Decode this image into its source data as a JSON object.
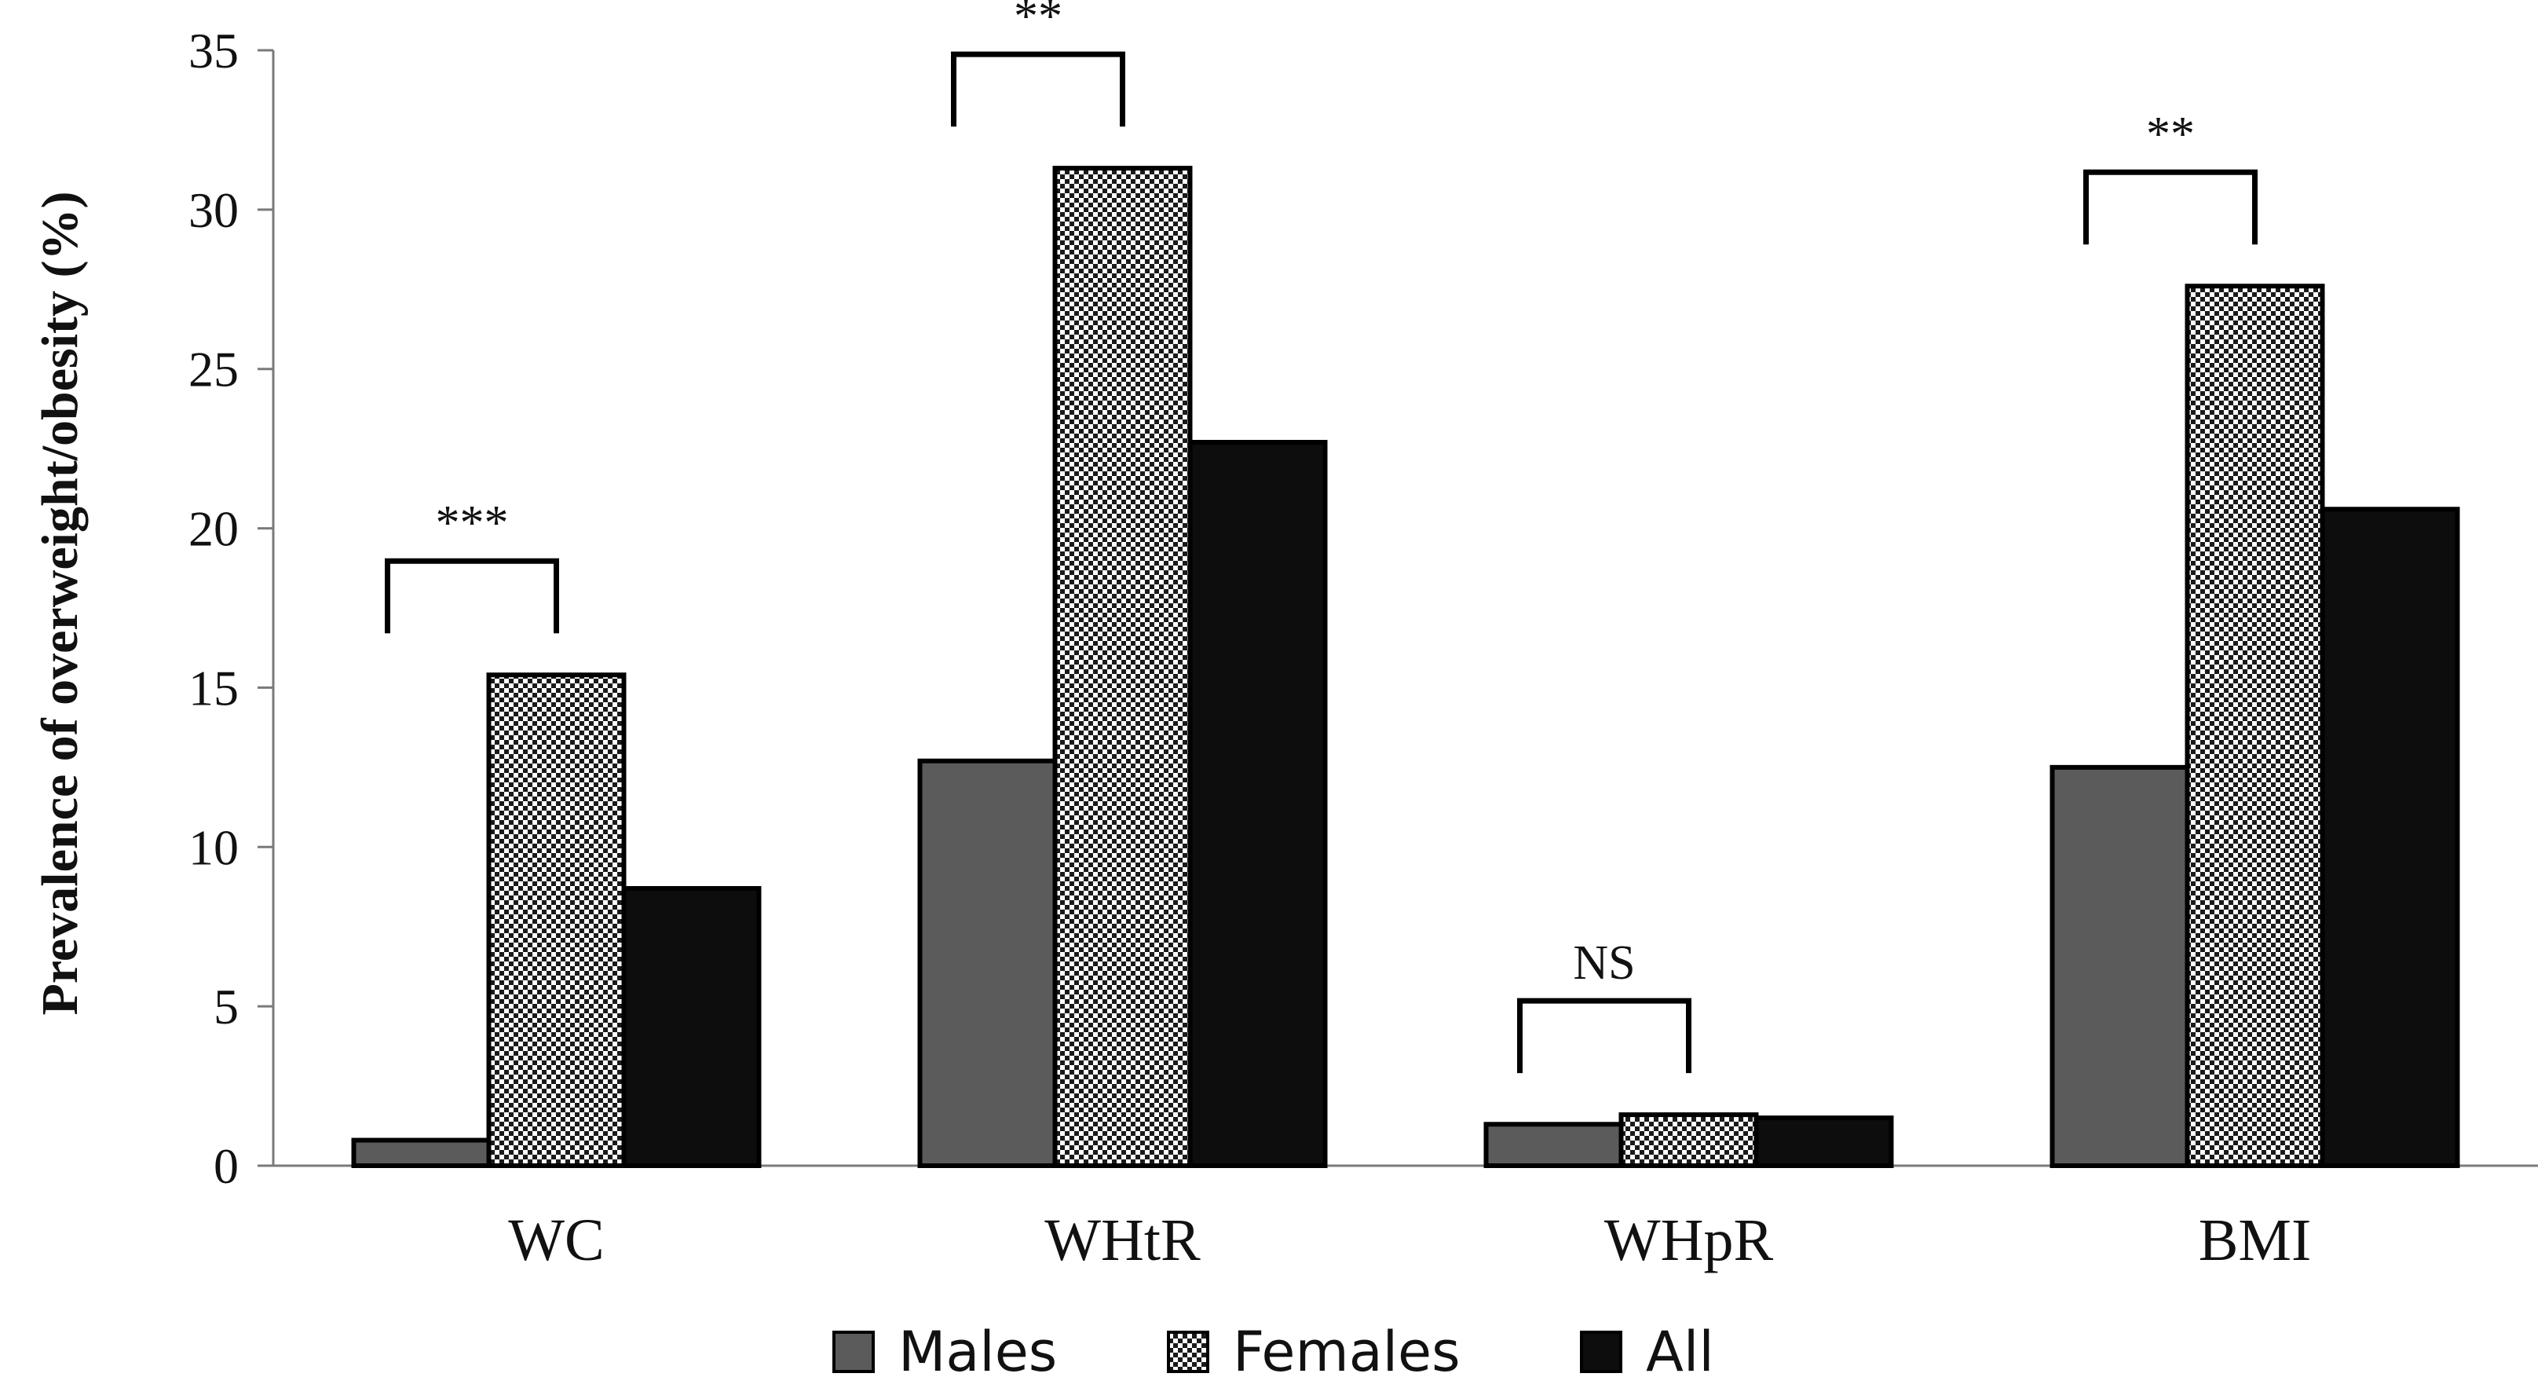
{
  "chart_data": {
    "type": "bar",
    "title": "",
    "xlabel": "",
    "ylabel": "Prevalence of overweight/obesity (%)",
    "ylim": [
      0,
      35
    ],
    "yticks": [
      "0",
      "5",
      "10",
      "15",
      "20",
      "25",
      "30",
      "35"
    ],
    "ytick_values": [
      0,
      5,
      10,
      15,
      20,
      25,
      30,
      35
    ],
    "categories": [
      "WC",
      "WHtR",
      "WHpR",
      "BMI"
    ],
    "series": [
      {
        "name": "Males",
        "values": [
          0.8,
          12.7,
          1.3,
          12.5
        ],
        "color": "#5b5b5b",
        "pattern": "solid"
      },
      {
        "name": "Females",
        "values": [
          15.4,
          31.3,
          1.6,
          27.6
        ],
        "color": "#ffffff",
        "pattern": "checker"
      },
      {
        "name": "All",
        "values": [
          8.7,
          22.7,
          1.5,
          20.6
        ],
        "color": "#0d0d0d",
        "pattern": "solid"
      }
    ],
    "significance": [
      {
        "category": "WC",
        "label": "***"
      },
      {
        "category": "WHtR",
        "label": "**"
      },
      {
        "category": "WHpR",
        "label": "NS"
      },
      {
        "category": "BMI",
        "label": "**"
      }
    ],
    "legend_position": "bottom",
    "grid": false
  }
}
